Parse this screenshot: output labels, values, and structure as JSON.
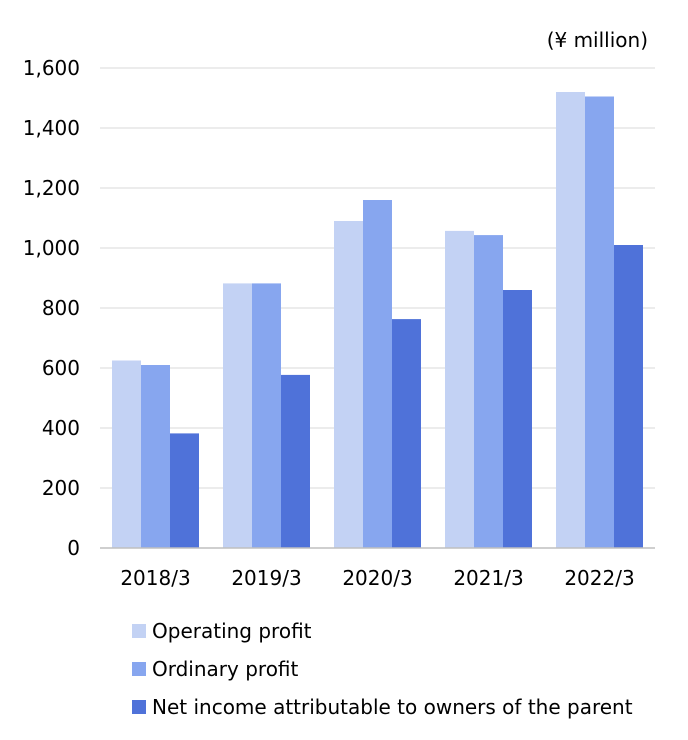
{
  "chart_data": {
    "type": "bar",
    "unit_label": "(¥ million)",
    "categories": [
      "2018/3",
      "2019/3",
      "2020/3",
      "2021/3",
      "2022/3"
    ],
    "series": [
      {
        "name": "Operating profit",
        "color": "#c3d2f4",
        "values": [
          625,
          882,
          1090,
          1057,
          1520
        ]
      },
      {
        "name": "Ordinary profit",
        "color": "#87a6ef",
        "values": [
          610,
          882,
          1160,
          1043,
          1505
        ]
      },
      {
        "name": "Net income attributable to owners of the parent",
        "color": "#4f72d9",
        "values": [
          382,
          577,
          763,
          860,
          1010
        ]
      }
    ],
    "ylim": [
      0,
      1600
    ],
    "yticks": [
      "0",
      "200",
      "400",
      "600",
      "800",
      "1,000",
      "1,200",
      "1,400",
      "1,600"
    ],
    "grid": true,
    "legend_position": "bottom"
  }
}
